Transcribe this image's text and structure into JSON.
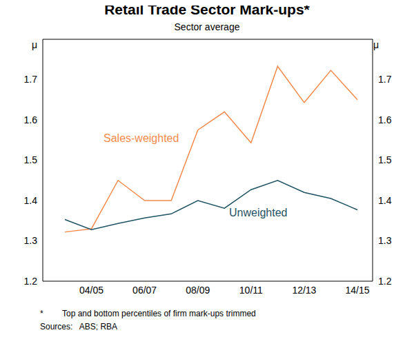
{
  "chart_data": {
    "type": "line",
    "title": "Retail Trade Sector Mark-ups*",
    "subtitle": "Sector average",
    "y_unit": "μ",
    "categories": [
      null,
      "04/05",
      null,
      "06/07",
      null,
      "08/09",
      null,
      "10/11",
      null,
      "12/13",
      null,
      "14/15"
    ],
    "series": [
      {
        "name": "Sales-weighted",
        "color": "#f58a4b",
        "values": [
          1.322,
          1.33,
          1.45,
          1.4,
          1.4,
          1.575,
          1.62,
          1.543,
          1.733,
          1.643,
          1.723,
          1.65
        ]
      },
      {
        "name": "Unweighted",
        "color": "#1f5263",
        "values": [
          1.353,
          1.328,
          1.343,
          1.357,
          1.367,
          1.4,
          1.381,
          1.427,
          1.45,
          1.42,
          1.405,
          1.377
        ]
      }
    ],
    "ylim": [
      1.2,
      1.8
    ],
    "yticks": [
      1.2,
      1.3,
      1.4,
      1.5,
      1.6,
      1.7
    ],
    "grid": false,
    "legend": "none",
    "note_marker": "*",
    "note": "Top and bottom percentiles of firm mark-ups trimmed",
    "sources": "Sources:   ABS; RBA"
  }
}
